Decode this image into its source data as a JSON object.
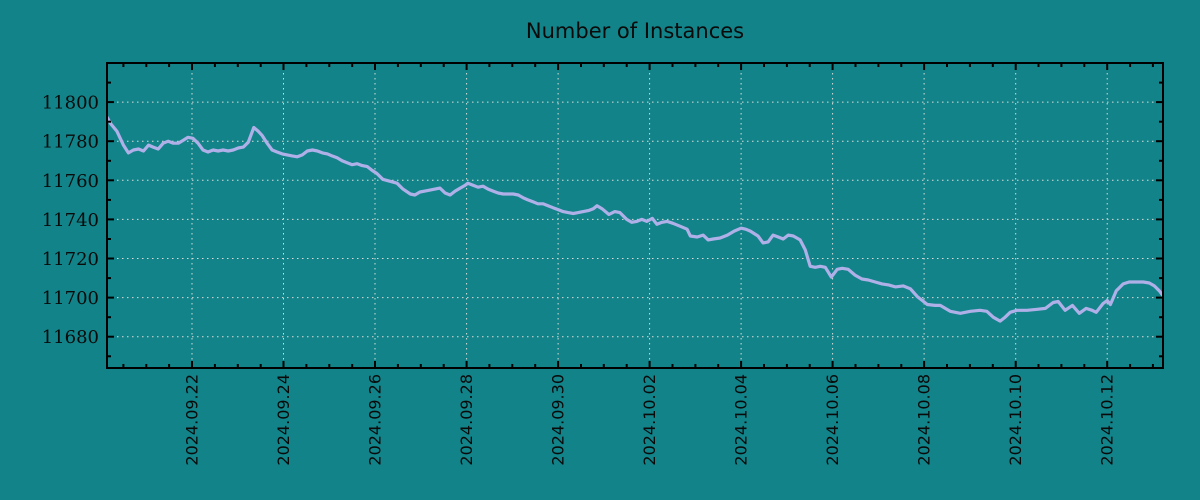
{
  "title": "Number of Instances",
  "colors": {
    "background": "#118389",
    "line": "#b0b0e8",
    "grid": "#d9dcd9",
    "axis": "#000000",
    "text": "#0a0a0a"
  },
  "chart_data": {
    "type": "line",
    "title": "Number of Instances",
    "series_name": "number-of-instances",
    "xlabel": "",
    "ylabel": "",
    "grid": true,
    "legend": "none",
    "x_unit": "days since 2024-09-20 00:00",
    "xlim": [
      0.142,
      23.22
    ],
    "ylim": [
      11664,
      11820
    ],
    "x_tick_days": [
      2,
      4,
      6,
      8,
      10,
      12,
      14,
      16,
      18,
      20,
      22
    ],
    "x_tick_labels": [
      "2024.09.22",
      "2024.09.24",
      "2024.09.26",
      "2024.09.28",
      "2024.09.30",
      "2024.10.02",
      "2024.10.04",
      "2024.10.06",
      "2024.10.08",
      "2024.10.10",
      "2024.10.12"
    ],
    "x_minor_step": 0.5,
    "y_ticks": [
      11680,
      11700,
      11720,
      11740,
      11760,
      11780,
      11800
    ],
    "y_minor_step": 10,
    "points": [
      [
        0.15,
        11792
      ],
      [
        0.22,
        11789
      ],
      [
        0.36,
        11785
      ],
      [
        0.5,
        11778
      ],
      [
        0.61,
        11774
      ],
      [
        0.72,
        11775.5
      ],
      [
        0.83,
        11776
      ],
      [
        0.94,
        11775
      ],
      [
        1.05,
        11778
      ],
      [
        1.15,
        11777
      ],
      [
        1.26,
        11776
      ],
      [
        1.37,
        11779
      ],
      [
        1.48,
        11780
      ],
      [
        1.59,
        11779
      ],
      [
        1.7,
        11779
      ],
      [
        1.81,
        11780.5
      ],
      [
        1.91,
        11782
      ],
      [
        2.02,
        11781.5
      ],
      [
        2.13,
        11779
      ],
      [
        2.24,
        11775.5
      ],
      [
        2.35,
        11774.5
      ],
      [
        2.46,
        11775.5
      ],
      [
        2.57,
        11775
      ],
      [
        2.68,
        11775.5
      ],
      [
        2.79,
        11775
      ],
      [
        2.9,
        11775.5
      ],
      [
        3.01,
        11776.5
      ],
      [
        3.12,
        11777
      ],
      [
        3.23,
        11779.5
      ],
      [
        3.35,
        11787
      ],
      [
        3.45,
        11785
      ],
      [
        3.53,
        11783
      ],
      [
        3.64,
        11779
      ],
      [
        3.75,
        11775.5
      ],
      [
        3.86,
        11774.5
      ],
      [
        3.97,
        11773.5
      ],
      [
        4.08,
        11773
      ],
      [
        4.19,
        11772.5
      ],
      [
        4.3,
        11772
      ],
      [
        4.41,
        11773
      ],
      [
        4.52,
        11775
      ],
      [
        4.63,
        11775.5
      ],
      [
        4.74,
        11775
      ],
      [
        4.85,
        11774
      ],
      [
        4.96,
        11773.5
      ],
      [
        5.06,
        11772.5
      ],
      [
        5.17,
        11771.5
      ],
      [
        5.28,
        11770
      ],
      [
        5.39,
        11769
      ],
      [
        5.5,
        11768
      ],
      [
        5.61,
        11768.5
      ],
      [
        5.72,
        11767.5
      ],
      [
        5.83,
        11767
      ],
      [
        5.94,
        11765
      ],
      [
        6.04,
        11763.5
      ],
      [
        6.17,
        11760.5
      ],
      [
        6.33,
        11759.5
      ],
      [
        6.48,
        11758.5
      ],
      [
        6.61,
        11755.5
      ],
      [
        6.77,
        11753
      ],
      [
        6.87,
        11752.5
      ],
      [
        6.98,
        11754
      ],
      [
        7.09,
        11754.5
      ],
      [
        7.2,
        11755
      ],
      [
        7.31,
        11755.5
      ],
      [
        7.42,
        11756
      ],
      [
        7.53,
        11753.5
      ],
      [
        7.64,
        11752.5
      ],
      [
        7.75,
        11754.5
      ],
      [
        7.86,
        11756
      ],
      [
        7.97,
        11757.5
      ],
      [
        8.03,
        11758.5
      ],
      [
        8.14,
        11757.5
      ],
      [
        8.25,
        11756.5
      ],
      [
        8.36,
        11757
      ],
      [
        8.47,
        11755.5
      ],
      [
        8.58,
        11754.5
      ],
      [
        8.69,
        11753.5
      ],
      [
        8.8,
        11753
      ],
      [
        8.91,
        11753
      ],
      [
        9.02,
        11753
      ],
      [
        9.13,
        11752.5
      ],
      [
        9.24,
        11751
      ],
      [
        9.34,
        11750
      ],
      [
        9.45,
        11749
      ],
      [
        9.56,
        11748
      ],
      [
        9.67,
        11748
      ],
      [
        9.78,
        11747
      ],
      [
        9.89,
        11746
      ],
      [
        10.0,
        11745
      ],
      [
        10.11,
        11744
      ],
      [
        10.22,
        11743.5
      ],
      [
        10.33,
        11743
      ],
      [
        10.44,
        11743.5
      ],
      [
        10.55,
        11744
      ],
      [
        10.66,
        11744.5
      ],
      [
        10.77,
        11745.5
      ],
      [
        10.85,
        11747
      ],
      [
        10.96,
        11745.5
      ],
      [
        11.11,
        11742.5
      ],
      [
        11.24,
        11744
      ],
      [
        11.35,
        11743.5
      ],
      [
        11.5,
        11740
      ],
      [
        11.61,
        11738.5
      ],
      [
        11.72,
        11739
      ],
      [
        11.83,
        11740
      ],
      [
        11.94,
        11739
      ],
      [
        12.06,
        11740.5
      ],
      [
        12.16,
        11737.5
      ],
      [
        12.27,
        11738.5
      ],
      [
        12.38,
        11739
      ],
      [
        12.51,
        11738
      ],
      [
        12.67,
        11736.5
      ],
      [
        12.82,
        11735
      ],
      [
        12.89,
        11731.5
      ],
      [
        13.04,
        11731
      ],
      [
        13.17,
        11732
      ],
      [
        13.28,
        11729.5
      ],
      [
        13.39,
        11730
      ],
      [
        13.54,
        11730.5
      ],
      [
        13.7,
        11732
      ],
      [
        13.85,
        11734
      ],
      [
        14.0,
        11735.5
      ],
      [
        14.1,
        11735
      ],
      [
        14.2,
        11734
      ],
      [
        14.37,
        11731.5
      ],
      [
        14.48,
        11728
      ],
      [
        14.59,
        11728.5
      ],
      [
        14.7,
        11732
      ],
      [
        14.81,
        11731
      ],
      [
        14.92,
        11730
      ],
      [
        15.03,
        11732
      ],
      [
        15.14,
        11731.5
      ],
      [
        15.29,
        11729.5
      ],
      [
        15.4,
        11724.5
      ],
      [
        15.51,
        11716
      ],
      [
        15.62,
        11715.5
      ],
      [
        15.73,
        11716
      ],
      [
        15.84,
        11715.5
      ],
      [
        15.97,
        11710.5
      ],
      [
        16.1,
        11714.5
      ],
      [
        16.21,
        11715
      ],
      [
        16.34,
        11714.5
      ],
      [
        16.49,
        11711.5
      ],
      [
        16.64,
        11709.5
      ],
      [
        16.78,
        11709
      ],
      [
        16.93,
        11708
      ],
      [
        17.08,
        11707
      ],
      [
        17.22,
        11706.5
      ],
      [
        17.37,
        11705.5
      ],
      [
        17.54,
        11706
      ],
      [
        17.7,
        11704.5
      ],
      [
        17.85,
        11700.5
      ],
      [
        17.96,
        11698.5
      ],
      [
        18.07,
        11696.5
      ],
      [
        18.24,
        11696
      ],
      [
        18.35,
        11696
      ],
      [
        18.57,
        11693
      ],
      [
        18.79,
        11692
      ],
      [
        19.01,
        11693
      ],
      [
        19.22,
        11693.5
      ],
      [
        19.37,
        11693
      ],
      [
        19.51,
        11690
      ],
      [
        19.66,
        11688
      ],
      [
        19.77,
        11690
      ],
      [
        19.88,
        11692.5
      ],
      [
        20.03,
        11693.5
      ],
      [
        20.25,
        11693.5
      ],
      [
        20.47,
        11694
      ],
      [
        20.65,
        11694.5
      ],
      [
        20.82,
        11697.5
      ],
      [
        20.93,
        11698
      ],
      [
        21.08,
        11693.5
      ],
      [
        21.24,
        11696
      ],
      [
        21.39,
        11692
      ],
      [
        21.54,
        11694.5
      ],
      [
        21.67,
        11693.5
      ],
      [
        21.76,
        11692.5
      ],
      [
        21.91,
        11697
      ],
      [
        22.0,
        11698.5
      ],
      [
        22.07,
        11696.5
      ],
      [
        22.2,
        11703.5
      ],
      [
        22.35,
        11707
      ],
      [
        22.48,
        11708
      ],
      [
        22.65,
        11708
      ],
      [
        22.79,
        11708
      ],
      [
        22.92,
        11707.5
      ],
      [
        23.03,
        11706
      ],
      [
        23.14,
        11703.5
      ],
      [
        23.22,
        11701
      ]
    ]
  }
}
